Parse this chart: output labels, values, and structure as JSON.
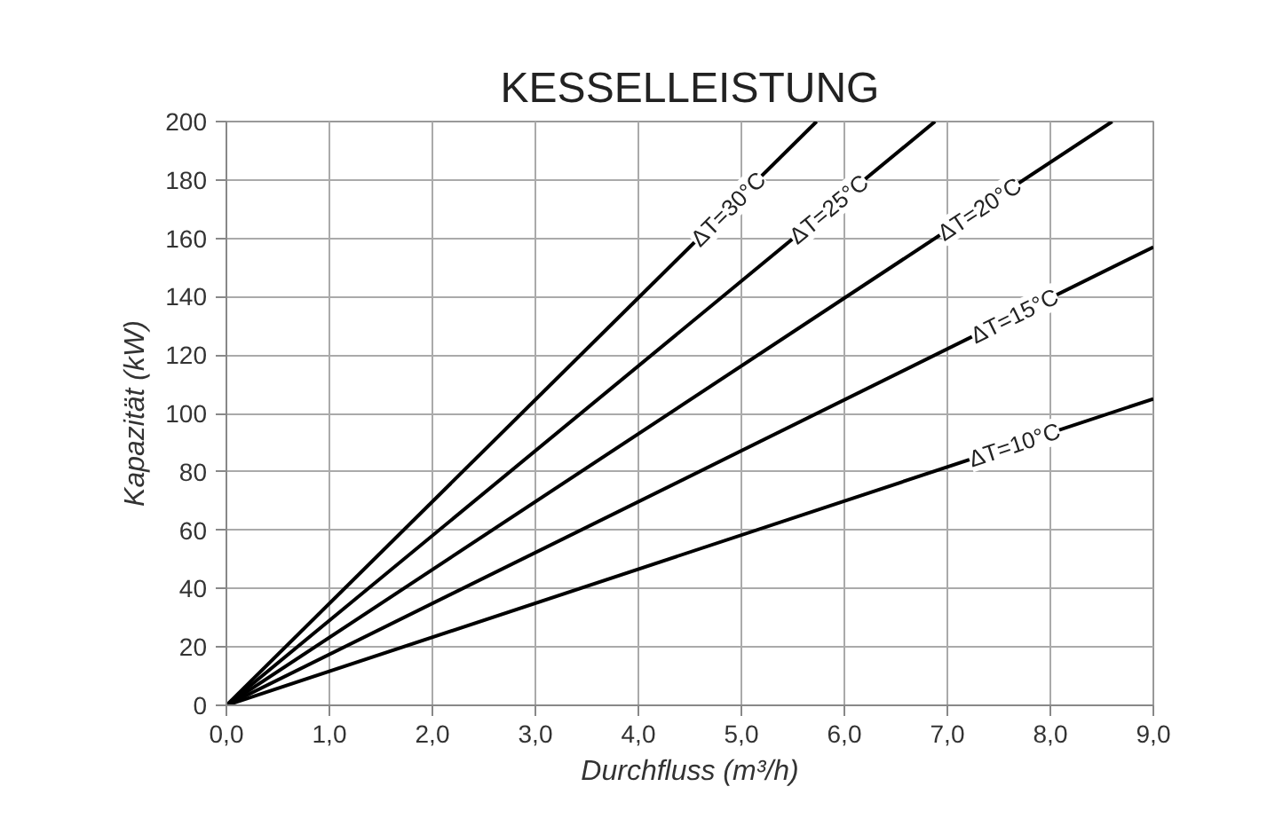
{
  "chart_data": {
    "type": "line",
    "title": "KESSELLEISTUNG",
    "xlabel": "Durchfluss (m³/h)",
    "ylabel": "Kapazität (kW)",
    "series": [
      {
        "name": "ΔT=30°C",
        "color": "#000000",
        "x": [
          0,
          5.73
        ],
        "values": [
          0,
          200
        ]
      },
      {
        "name": "ΔT=25°C",
        "color": "#000000",
        "x": [
          0,
          6.88
        ],
        "values": [
          0,
          200
        ]
      },
      {
        "name": "ΔT=20°C",
        "color": "#000000",
        "x": [
          0,
          8.6
        ],
        "values": [
          0,
          200
        ]
      },
      {
        "name": "ΔT=15°C",
        "color": "#000000",
        "x": [
          0,
          9.0
        ],
        "values": [
          0,
          157
        ]
      },
      {
        "name": "ΔT=10°C",
        "color": "#000000",
        "x": [
          0,
          9.0
        ],
        "values": [
          0,
          105
        ]
      }
    ],
    "xlim": [
      0,
      9
    ],
    "ylim": [
      0,
      200
    ],
    "xticks": [
      {
        "value": 0,
        "label": "0,0"
      },
      {
        "value": 1,
        "label": "1,0"
      },
      {
        "value": 2,
        "label": "2,0"
      },
      {
        "value": 3,
        "label": "3,0"
      },
      {
        "value": 4,
        "label": "4,0"
      },
      {
        "value": 5,
        "label": "5,0"
      },
      {
        "value": 6,
        "label": "6,0"
      },
      {
        "value": 7,
        "label": "7,0"
      },
      {
        "value": 8,
        "label": "8,0"
      },
      {
        "value": 9,
        "label": "9,0"
      }
    ],
    "yticks": [
      0,
      20,
      40,
      60,
      80,
      100,
      120,
      140,
      160,
      180,
      200
    ],
    "grid": true,
    "legend": false,
    "marker": "none",
    "line_style": "solid"
  }
}
